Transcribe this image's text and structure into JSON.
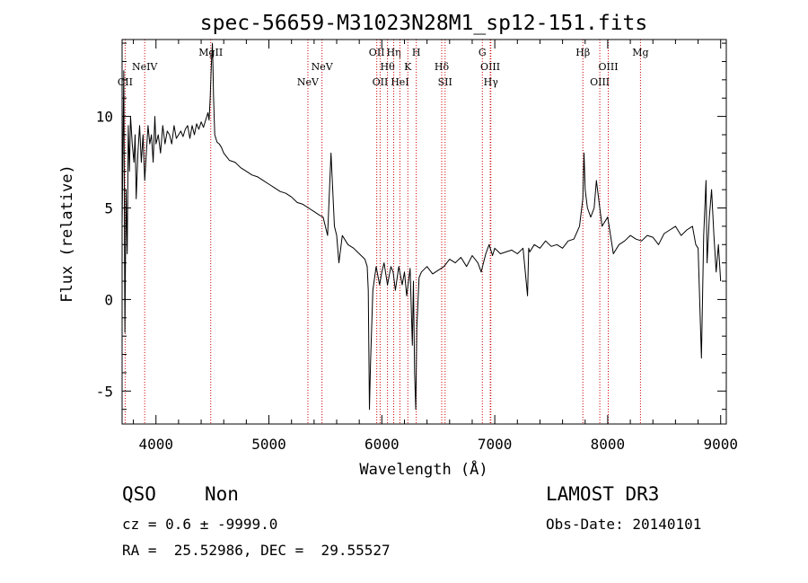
{
  "chart_data": {
    "type": "line",
    "title": "spec-56659-M31023N28M1_sp12-151.fits",
    "xlabel": "Wavelength (Å)",
    "ylabel": "Flux (relative)",
    "xlim": [
      3700,
      9050
    ],
    "ylim": [
      -6.8,
      14.2
    ],
    "x_ticks": [
      4000,
      5000,
      6000,
      7000,
      8000,
      9000
    ],
    "y_ticks": [
      -5,
      0,
      5,
      10
    ],
    "line_color": "#000000",
    "marker_color": "#cc0000",
    "series": [
      {
        "name": "spectrum",
        "x": [
          3700,
          3715,
          3725,
          3735,
          3745,
          3755,
          3765,
          3775,
          3790,
          3805,
          3815,
          3825,
          3840,
          3855,
          3870,
          3885,
          3900,
          3915,
          3930,
          3945,
          3960,
          3975,
          3990,
          4000,
          4020,
          4040,
          4060,
          4080,
          4100,
          4120,
          4140,
          4160,
          4180,
          4200,
          4220,
          4240,
          4260,
          4280,
          4300,
          4320,
          4340,
          4360,
          4380,
          4400,
          4420,
          4440,
          4460,
          4470,
          4480,
          4490,
          4500,
          4505,
          4510,
          4520,
          4540,
          4560,
          4580,
          4600,
          4650,
          4700,
          4750,
          4800,
          4850,
          4900,
          4950,
          5000,
          5050,
          5100,
          5150,
          5200,
          5250,
          5300,
          5350,
          5400,
          5450,
          5480,
          5500,
          5520,
          5550,
          5580,
          5600,
          5620,
          5650,
          5700,
          5750,
          5800,
          5850,
          5870,
          5880,
          5890,
          5900,
          5920,
          5950,
          5980,
          6000,
          6020,
          6050,
          6080,
          6100,
          6120,
          6150,
          6180,
          6200,
          6220,
          6250,
          6270,
          6280,
          6290,
          6300,
          6310,
          6330,
          6350,
          6400,
          6450,
          6500,
          6550,
          6600,
          6650,
          6700,
          6750,
          6800,
          6850,
          6880,
          6900,
          6920,
          6950,
          6980,
          7000,
          7050,
          7100,
          7150,
          7200,
          7250,
          7290,
          7300,
          7310,
          7350,
          7400,
          7450,
          7500,
          7550,
          7600,
          7650,
          7700,
          7750,
          7760,
          7780,
          7790,
          7800,
          7820,
          7850,
          7880,
          7900,
          7950,
          8000,
          8050,
          8100,
          8150,
          8200,
          8250,
          8300,
          8350,
          8400,
          8450,
          8500,
          8550,
          8600,
          8650,
          8700,
          8750,
          8780,
          8800,
          8830,
          8850,
          8860,
          8870,
          8880,
          8900,
          8920,
          8940,
          8960,
          8980,
          9000
        ],
        "values": [
          4.0,
          12.5,
          -1.8,
          6.0,
          2.5,
          9.5,
          7.0,
          10.0,
          8.5,
          7.5,
          9.0,
          5.5,
          8.0,
          9.5,
          7.5,
          9.0,
          6.5,
          8.0,
          9.5,
          8.5,
          9.0,
          7.5,
          10.0,
          8.5,
          9.0,
          8.0,
          9.5,
          8.5,
          9.2,
          9.0,
          8.5,
          9.5,
          8.8,
          9.0,
          9.2,
          8.9,
          9.3,
          9.5,
          8.8,
          9.5,
          9.0,
          9.6,
          9.3,
          9.7,
          9.4,
          9.8,
          10.2,
          9.8,
          11.0,
          12.8,
          14.0,
          12.5,
          11.0,
          9.0,
          8.6,
          8.5,
          8.3,
          8.0,
          7.6,
          7.5,
          7.2,
          7.0,
          6.8,
          6.7,
          6.5,
          6.3,
          6.1,
          5.9,
          5.8,
          5.6,
          5.3,
          5.2,
          5.0,
          4.8,
          4.6,
          4.5,
          4.0,
          3.5,
          8.0,
          4.0,
          3.5,
          2.0,
          3.5,
          3.0,
          2.8,
          2.5,
          2.2,
          1.8,
          0.5,
          -6.0,
          -3.5,
          0.5,
          1.8,
          0.8,
          1.5,
          2.0,
          0.8,
          1.8,
          1.5,
          0.5,
          1.8,
          0.8,
          1.5,
          0.2,
          1.7,
          -2.5,
          1.0,
          -4.0,
          -6.0,
          -1.5,
          1.2,
          1.5,
          1.8,
          1.4,
          1.6,
          1.8,
          2.2,
          2.0,
          2.3,
          1.8,
          2.4,
          2.0,
          1.5,
          2.0,
          2.5,
          3.0,
          2.4,
          2.8,
          2.5,
          2.6,
          2.7,
          2.5,
          2.8,
          0.2,
          2.8,
          2.6,
          3.0,
          2.8,
          3.2,
          2.9,
          3.0,
          2.8,
          3.2,
          3.3,
          4.0,
          4.5,
          5.5,
          8.0,
          6.0,
          5.0,
          4.5,
          5.0,
          6.5,
          4.0,
          4.5,
          2.5,
          3.0,
          3.2,
          3.5,
          3.3,
          3.2,
          3.5,
          3.4,
          3.0,
          3.6,
          3.8,
          4.0,
          3.5,
          3.8,
          4.0,
          3.0,
          2.8,
          -3.2,
          3.5,
          5.0,
          6.5,
          2.0,
          4.5,
          6.0,
          3.5,
          1.5,
          3.0,
          1.0
        ]
      }
    ],
    "annotations": [
      {
        "label": "CII",
        "x": 3727,
        "row": 3
      },
      {
        "label": "NeIV",
        "x": 3900,
        "row": 2
      },
      {
        "label": "MgII",
        "x": 4485,
        "row": 1
      },
      {
        "label": "NeV",
        "x": 5345,
        "row": 3
      },
      {
        "label": "NeV",
        "x": 5470,
        "row": 2
      },
      {
        "label": "OII",
        "x": 5955,
        "row": 1
      },
      {
        "label": "OII",
        "x": 5985,
        "row": 3
      },
      {
        "label": "Hθ",
        "x": 6050,
        "row": 2
      },
      {
        "label": "Hη",
        "x": 6105,
        "row": 1
      },
      {
        "label": "HeI",
        "x": 6160,
        "row": 3
      },
      {
        "label": "K",
        "x": 6230,
        "row": 2
      },
      {
        "label": "H",
        "x": 6305,
        "row": 1
      },
      {
        "label": "Hδ",
        "x": 6530,
        "row": 2
      },
      {
        "label": "SII",
        "x": 6560,
        "row": 3
      },
      {
        "label": "G",
        "x": 6890,
        "row": 1
      },
      {
        "label": "OIII",
        "x": 6960,
        "row": 2
      },
      {
        "label": "Hγ",
        "x": 6965,
        "row": 3
      },
      {
        "label": "Hβ",
        "x": 7780,
        "row": 1
      },
      {
        "label": "OIII",
        "x": 7930,
        "row": 3
      },
      {
        "label": "OIII",
        "x": 8005,
        "row": 2
      },
      {
        "label": "Mg",
        "x": 8290,
        "row": 1
      }
    ]
  },
  "info": {
    "class": "QSO",
    "subclass": "Non",
    "survey": "LAMOST DR3",
    "cz_line": "cz = 0.6 ± -9999.0",
    "obs_date": "Obs-Date: 20140101",
    "coords": "RA =  25.52986, DEC =  29.55527"
  }
}
